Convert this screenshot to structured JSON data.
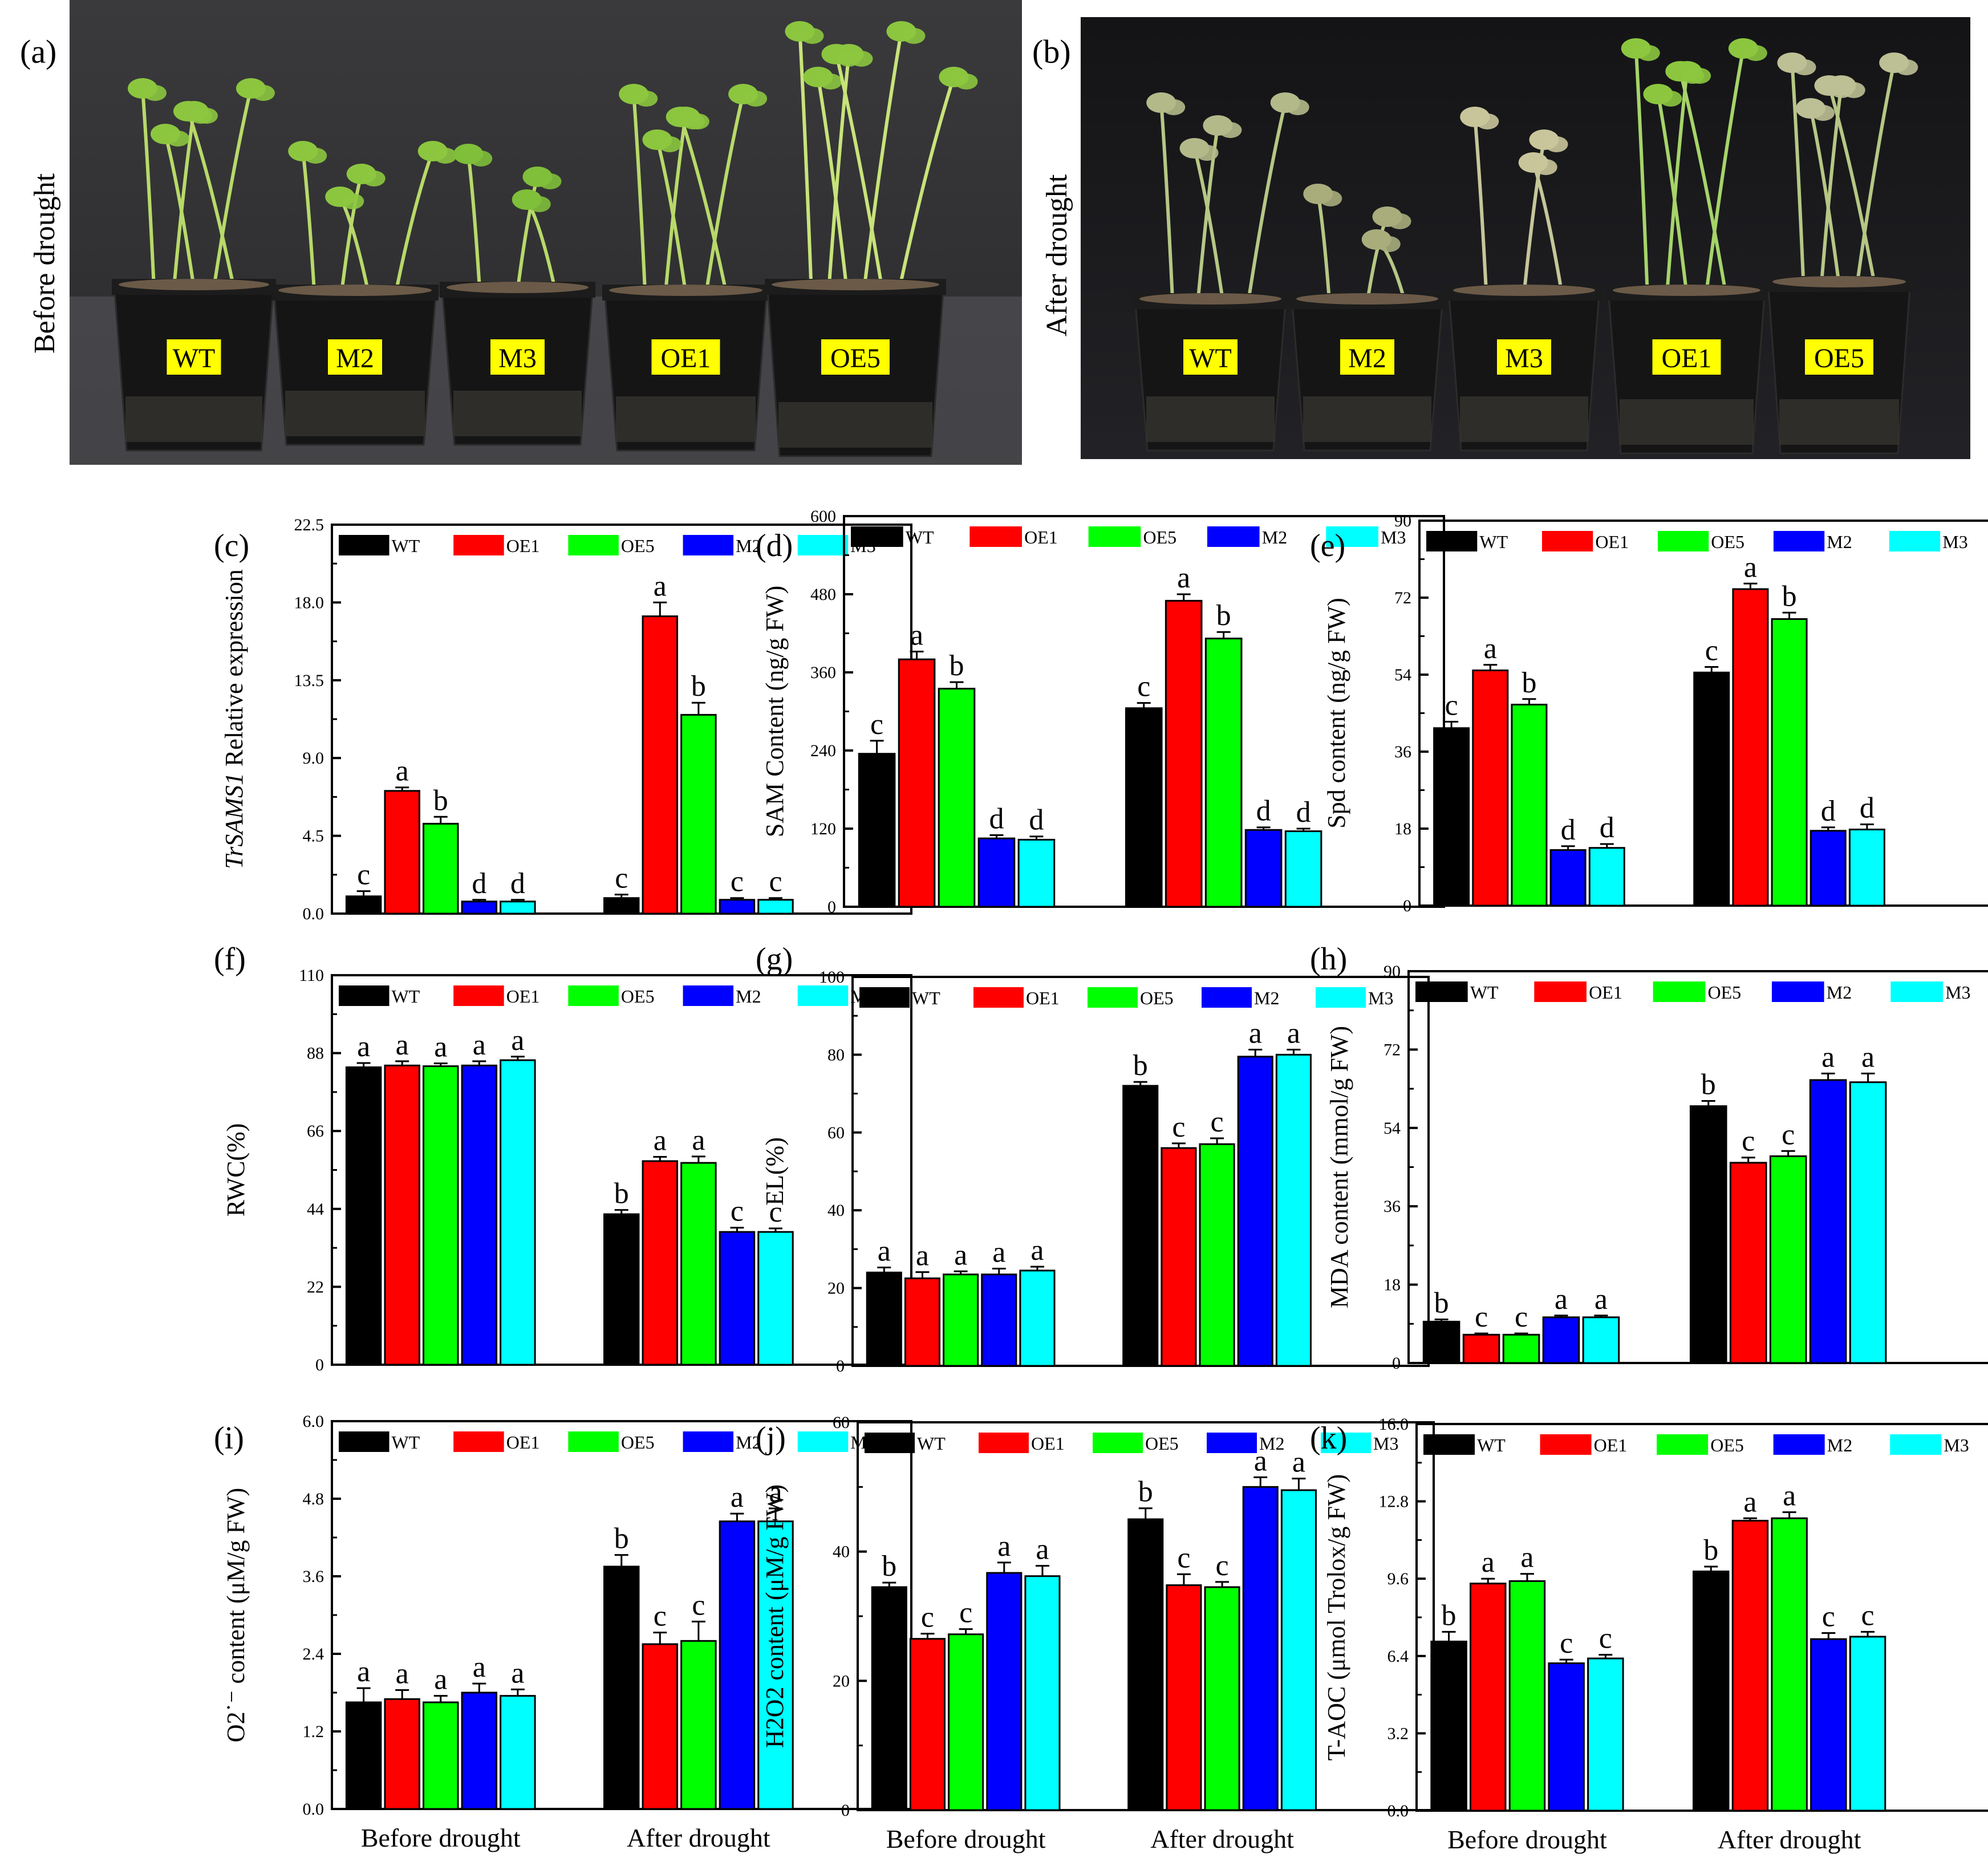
{
  "figure": {
    "panels_top": [
      {
        "label": "(a)",
        "side_label": "Before drought",
        "pot_labels": [
          "WT",
          "M2",
          "M3",
          "OE1",
          "OE5"
        ]
      },
      {
        "label": "(b)",
        "side_label": "After drought",
        "pot_labels": [
          "WT",
          "M2",
          "M3",
          "OE1",
          "OE5"
        ]
      }
    ],
    "x_group_labels": [
      "Before drought",
      "After drought"
    ],
    "colors": {
      "WT": "#000000",
      "OE1": "#ff0000",
      "OE5": "#00ff00",
      "M2": "#0000ff",
      "M3": "#00ffff"
    },
    "legend": [
      "WT",
      "OE1",
      "OE5",
      "M2",
      "M3"
    ]
  },
  "chart_data": [
    {
      "panel": "(c)",
      "type": "bar",
      "ylabel": "TrSAMS1 Relative expression",
      "ylabel_italic_part": "TrSAMS1",
      "ylabel_rest": " Relative expression",
      "ylim": [
        0,
        22.5
      ],
      "ticks": [
        "0.0",
        "4.5",
        "9.0",
        "13.5",
        "18.0",
        "22.5"
      ],
      "categories": [
        "Before drought",
        "After drought"
      ],
      "series": [
        {
          "name": "WT",
          "values": [
            1.0,
            0.9
          ],
          "err": [
            0.3,
            0.2
          ],
          "letters": [
            "c",
            "c"
          ]
        },
        {
          "name": "OE1",
          "values": [
            7.1,
            17.2
          ],
          "err": [
            0.2,
            0.8
          ],
          "letters": [
            "a",
            "a"
          ]
        },
        {
          "name": "OE5",
          "values": [
            5.2,
            11.5
          ],
          "err": [
            0.4,
            0.7
          ],
          "letters": [
            "b",
            "b"
          ]
        },
        {
          "name": "M2",
          "values": [
            0.7,
            0.8
          ],
          "err": [
            0.1,
            0.1
          ],
          "letters": [
            "d",
            "c"
          ]
        },
        {
          "name": "M3",
          "values": [
            0.7,
            0.8
          ],
          "err": [
            0.1,
            0.1
          ],
          "letters": [
            "d",
            "c"
          ]
        }
      ]
    },
    {
      "panel": "(d)",
      "type": "bar",
      "ylabel": "SAM Content (ng/g FW)",
      "ylim": [
        0,
        600
      ],
      "ticks": [
        "0",
        "120",
        "240",
        "360",
        "480",
        "600"
      ],
      "categories": [
        "Before drought",
        "After drought"
      ],
      "series": [
        {
          "name": "WT",
          "values": [
            235,
            305
          ],
          "err": [
            20,
            8
          ],
          "letters": [
            "c",
            "c"
          ]
        },
        {
          "name": "OE1",
          "values": [
            380,
            470
          ],
          "err": [
            12,
            10
          ],
          "letters": [
            "a",
            "a"
          ]
        },
        {
          "name": "OE5",
          "values": [
            335,
            412
          ],
          "err": [
            10,
            10
          ],
          "letters": [
            "b",
            "b"
          ]
        },
        {
          "name": "M2",
          "values": [
            105,
            118
          ],
          "err": [
            5,
            4
          ],
          "letters": [
            "d",
            "d"
          ]
        },
        {
          "name": "M3",
          "values": [
            103,
            116
          ],
          "err": [
            5,
            4
          ],
          "letters": [
            "d",
            "d"
          ]
        }
      ]
    },
    {
      "panel": "(e)",
      "type": "bar",
      "ylabel": "Spd content (ng/g FW)",
      "ylim": [
        0,
        90
      ],
      "ticks": [
        "0",
        "18",
        "36",
        "54",
        "72",
        "90"
      ],
      "categories": [
        "Before drought",
        "After drought"
      ],
      "series": [
        {
          "name": "WT",
          "values": [
            41.5,
            54.5
          ],
          "err": [
            1.5,
            1.3
          ],
          "letters": [
            "c",
            "c"
          ]
        },
        {
          "name": "OE1",
          "values": [
            55,
            74
          ],
          "err": [
            1.3,
            1.3
          ],
          "letters": [
            "a",
            "a"
          ]
        },
        {
          "name": "OE5",
          "values": [
            47,
            67
          ],
          "err": [
            1.3,
            1.5
          ],
          "letters": [
            "b",
            "b"
          ]
        },
        {
          "name": "M2",
          "values": [
            13,
            17.5
          ],
          "err": [
            0.9,
            0.8
          ],
          "letters": [
            "d",
            "d"
          ]
        },
        {
          "name": "M3",
          "values": [
            13.5,
            17.8
          ],
          "err": [
            0.9,
            1.2
          ],
          "letters": [
            "d",
            "d"
          ]
        }
      ]
    },
    {
      "panel": "(f)",
      "type": "bar",
      "ylabel": "RWC(%)",
      "ylim": [
        0,
        110
      ],
      "ticks": [
        "0",
        "22",
        "44",
        "66",
        "88",
        "110"
      ],
      "categories": [
        "Before drought",
        "After drought"
      ],
      "series": [
        {
          "name": "WT",
          "values": [
            84,
            42.5
          ],
          "err": [
            1.2,
            1.2
          ],
          "letters": [
            "a",
            "b"
          ]
        },
        {
          "name": "OE1",
          "values": [
            84.5,
            57.5
          ],
          "err": [
            1.2,
            1.2
          ],
          "letters": [
            "a",
            "a"
          ]
        },
        {
          "name": "OE5",
          "values": [
            84.3,
            57
          ],
          "err": [
            0.8,
            1.8
          ],
          "letters": [
            "a",
            "a"
          ]
        },
        {
          "name": "M2",
          "values": [
            84.5,
            37.5
          ],
          "err": [
            1.2,
            1.2
          ],
          "letters": [
            "a",
            "c"
          ]
        },
        {
          "name": "M3",
          "values": [
            86,
            37.5
          ],
          "err": [
            1.0,
            1.0
          ],
          "letters": [
            "a",
            "c"
          ]
        }
      ]
    },
    {
      "panel": "(g)",
      "type": "bar",
      "ylabel": "EL(%)",
      "ylim": [
        0,
        100
      ],
      "ticks": [
        "0",
        "20",
        "40",
        "60",
        "80",
        "100"
      ],
      "categories": [
        "Before drought",
        "After drought"
      ],
      "series": [
        {
          "name": "WT",
          "values": [
            24,
            72
          ],
          "err": [
            1.3,
            1.0
          ],
          "letters": [
            "a",
            "b"
          ]
        },
        {
          "name": "OE1",
          "values": [
            22.5,
            56
          ],
          "err": [
            1.6,
            1.2
          ],
          "letters": [
            "a",
            "c"
          ]
        },
        {
          "name": "OE5",
          "values": [
            23.5,
            57
          ],
          "err": [
            0.8,
            1.5
          ],
          "letters": [
            "a",
            "c"
          ]
        },
        {
          "name": "M2",
          "values": [
            23.5,
            79.5
          ],
          "err": [
            1.5,
            1.8
          ],
          "letters": [
            "a",
            "a"
          ]
        },
        {
          "name": "M3",
          "values": [
            24.5,
            80
          ],
          "err": [
            1.0,
            1.3
          ],
          "letters": [
            "a",
            "a"
          ]
        }
      ]
    },
    {
      "panel": "(h)",
      "type": "bar",
      "ylabel": "MDA content (mmol/g FW)",
      "ylim": [
        0,
        90
      ],
      "ticks": [
        "0",
        "18",
        "36",
        "54",
        "72",
        "90"
      ],
      "categories": [
        "Before drought",
        "After drought"
      ],
      "series": [
        {
          "name": "WT",
          "values": [
            9.5,
            59
          ],
          "err": [
            0.5,
            1.2
          ],
          "letters": [
            "b",
            "b"
          ]
        },
        {
          "name": "OE1",
          "values": [
            6.5,
            46
          ],
          "err": [
            0.3,
            1.2
          ],
          "letters": [
            "c",
            "c"
          ]
        },
        {
          "name": "OE5",
          "values": [
            6.5,
            47.5
          ],
          "err": [
            0.3,
            1.2
          ],
          "letters": [
            "c",
            "c"
          ]
        },
        {
          "name": "M2",
          "values": [
            10.5,
            65
          ],
          "err": [
            0.4,
            1.5
          ],
          "letters": [
            "a",
            "a"
          ]
        },
        {
          "name": "M3",
          "values": [
            10.5,
            64.5
          ],
          "err": [
            0.4,
            2.0
          ],
          "letters": [
            "a",
            "a"
          ]
        }
      ]
    },
    {
      "panel": "(i)",
      "type": "bar",
      "ylabel": "O2˙⁻ content (μM/g FW)",
      "ylim": [
        0,
        6.0
      ],
      "ticks": [
        "0.0",
        "1.2",
        "2.4",
        "3.6",
        "4.8",
        "6.0"
      ],
      "categories": [
        "Before drought",
        "After drought"
      ],
      "series": [
        {
          "name": "WT",
          "values": [
            1.65,
            3.75
          ],
          "err": [
            0.22,
            0.18
          ],
          "letters": [
            "a",
            "b"
          ]
        },
        {
          "name": "OE1",
          "values": [
            1.7,
            2.55
          ],
          "err": [
            0.14,
            0.18
          ],
          "letters": [
            "a",
            "c"
          ]
        },
        {
          "name": "OE5",
          "values": [
            1.65,
            2.6
          ],
          "err": [
            0.1,
            0.3
          ],
          "letters": [
            "a",
            "c"
          ]
        },
        {
          "name": "M2",
          "values": [
            1.8,
            4.45
          ],
          "err": [
            0.14,
            0.12
          ],
          "letters": [
            "a",
            "a"
          ]
        },
        {
          "name": "M3",
          "values": [
            1.75,
            4.45
          ],
          "err": [
            0.1,
            0.2
          ],
          "letters": [
            "a",
            "a"
          ]
        }
      ]
    },
    {
      "panel": "(j)",
      "type": "bar",
      "ylabel": "H2O2 content (μM/g FW)",
      "ylim": [
        0,
        60
      ],
      "ticks": [
        "0",
        "20",
        "40",
        "60"
      ],
      "categories": [
        "Before drought",
        "After drought"
      ],
      "series": [
        {
          "name": "WT",
          "values": [
            34.5,
            45
          ],
          "err": [
            0.7,
            1.7
          ],
          "letters": [
            "b",
            "b"
          ]
        },
        {
          "name": "OE1",
          "values": [
            26.5,
            34.8
          ],
          "err": [
            0.8,
            1.7
          ],
          "letters": [
            "c",
            "c"
          ]
        },
        {
          "name": "OE5",
          "values": [
            27.2,
            34.5
          ],
          "err": [
            0.8,
            0.8
          ],
          "letters": [
            "c",
            "c"
          ]
        },
        {
          "name": "M2",
          "values": [
            36.7,
            50
          ],
          "err": [
            1.6,
            1.5
          ],
          "letters": [
            "a",
            "a"
          ]
        },
        {
          "name": "M3",
          "values": [
            36.2,
            49.5
          ],
          "err": [
            1.6,
            1.8
          ],
          "letters": [
            "a",
            "a"
          ]
        }
      ]
    },
    {
      "panel": "(k)",
      "type": "bar",
      "ylabel": "T-AOC (μmol Trolox/g FW)",
      "ylim": [
        0,
        16
      ],
      "ticks": [
        "0.0",
        "3.2",
        "6.4",
        "9.6",
        "12.8",
        "16.0"
      ],
      "categories": [
        "Before drought",
        "After drought"
      ],
      "series": [
        {
          "name": "WT",
          "values": [
            7.0,
            9.9
          ],
          "err": [
            0.4,
            0.2
          ],
          "letters": [
            "b",
            "b"
          ]
        },
        {
          "name": "OE1",
          "values": [
            9.4,
            12.0
          ],
          "err": [
            0.2,
            0.1
          ],
          "letters": [
            "a",
            "a"
          ]
        },
        {
          "name": "OE5",
          "values": [
            9.5,
            12.1
          ],
          "err": [
            0.3,
            0.25
          ],
          "letters": [
            "a",
            "a"
          ]
        },
        {
          "name": "M2",
          "values": [
            6.1,
            7.1
          ],
          "err": [
            0.15,
            0.25
          ],
          "letters": [
            "c",
            "c"
          ]
        },
        {
          "name": "M3",
          "values": [
            6.3,
            7.2
          ],
          "err": [
            0.15,
            0.2
          ],
          "letters": [
            "c",
            "c"
          ]
        }
      ]
    }
  ]
}
